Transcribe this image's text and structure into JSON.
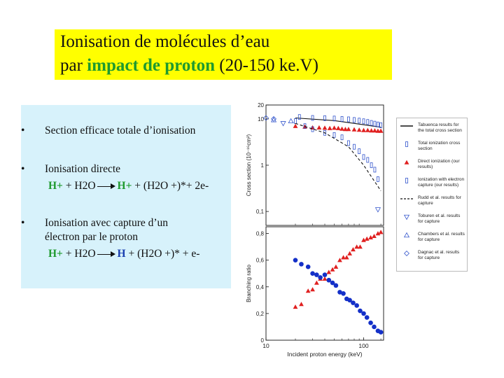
{
  "slide": {
    "title_line1": "Ionisation de molécules d’eau",
    "title_line2_pre": "par ",
    "title_line2_hl": "impact de proton",
    "title_line2_post": " (20-150 ke.V)"
  },
  "bullets": {
    "b1": "Section efficace totale d’ionisation",
    "b2": "Ionisation directe",
    "b3a": "Ionisation avec capture d’un",
    "b3b": "électron par le proton",
    "dot": "•"
  },
  "eq1": {
    "lhs_h": "H+",
    "lhs_rest": " + H2O",
    "rhs_h": "H+",
    "rhs_rest": " + (H2O +)*+ 2e-"
  },
  "eq2": {
    "lhs_h": "H+",
    "lhs_rest": " + H2O",
    "rhs_h": "H",
    "rhs_rest": " + (H2O +)* + e-"
  },
  "chart_data": [
    {
      "type": "scatter",
      "ylabel": "Cross section (10⁻¹⁶cm²)",
      "x_scale": "log",
      "y_scale": "log",
      "xlim": [
        10,
        160
      ],
      "ylim": [
        0.05,
        20
      ],
      "y_ticks": [
        "20",
        "10",
        "1",
        "0,1"
      ],
      "series": [
        {
          "name": "Tabuenca results for the total cross section",
          "style": "line",
          "x": [
            20,
            50,
            100,
            150
          ],
          "y": [
            10.5,
            9.2,
            7.5,
            6.6
          ]
        },
        {
          "name": "Total ionization cross section",
          "style": "open-bar",
          "x": [
            22,
            30,
            40,
            50,
            60,
            70,
            80,
            90,
            100,
            110,
            120,
            130,
            140,
            150
          ],
          "y": [
            11,
            10.5,
            10.4,
            10.2,
            10,
            9.8,
            9.5,
            9.2,
            8.9,
            8.6,
            8.2,
            7.9,
            7.6,
            7.3
          ]
        },
        {
          "name": "Direct ionization (our results)",
          "style": "filled-triangle",
          "x": [
            20,
            25,
            30,
            35,
            40,
            45,
            50,
            55,
            60,
            65,
            70,
            80,
            90,
            100,
            110,
            120,
            130,
            140,
            150
          ],
          "y": [
            7,
            6.8,
            6.5,
            6.5,
            6.4,
            6.3,
            6.4,
            6.3,
            6.1,
            6,
            6,
            5.9,
            5.8,
            5.7,
            5.7,
            5.6,
            5.6,
            5.5,
            5.5
          ]
        },
        {
          "name": "Ionization with electron capture (our results)",
          "style": "open-bar",
          "x": [
            20,
            25,
            30,
            40,
            50,
            60,
            70,
            80,
            90,
            100,
            110,
            120,
            130,
            140
          ],
          "y": [
            9,
            7,
            6,
            5,
            4.5,
            4,
            3,
            2.5,
            2,
            1.5,
            1.3,
            1,
            0.8,
            0.5
          ]
        },
        {
          "name": "Rudd et al. results for capture",
          "style": "dashed",
          "x": [
            20,
            40,
            70,
            100,
            150
          ],
          "y": [
            8,
            5,
            2.5,
            1,
            0.28
          ]
        },
        {
          "name": "Toburen et al. results for capture",
          "style": "open-triangle-down",
          "x": [
            15,
            140
          ],
          "y": [
            8,
            0.11
          ]
        },
        {
          "name": "Chambers et al. results for capture",
          "style": "open-triangle-up",
          "x": [
            12,
            18
          ],
          "y": [
            9.5,
            9
          ]
        },
        {
          "name": "Dagnac et al. results for capture",
          "style": "open-diamond",
          "x": [
            10,
            12
          ],
          "y": [
            10.5,
            10
          ]
        }
      ]
    },
    {
      "type": "scatter",
      "xlabel": "Incident proton energy (keV)",
      "ylabel": "Branching ratio",
      "x_scale": "log",
      "xlim": [
        10,
        160
      ],
      "ylim": [
        0,
        0.85
      ],
      "x_ticks": [
        "10",
        "100"
      ],
      "y_ticks": [
        "0",
        "0,2",
        "0,4",
        "0,6",
        "0,8"
      ],
      "series": [
        {
          "name": "Direct ionization",
          "style": "filled-triangle",
          "color": "#e02020",
          "x": [
            20,
            23,
            27,
            30,
            33,
            36,
            40,
            44,
            48,
            52,
            57,
            62,
            67,
            72,
            78,
            85,
            92,
            100,
            108,
            118,
            128,
            140,
            150
          ],
          "y": [
            0.25,
            0.27,
            0.37,
            0.38,
            0.43,
            0.46,
            0.46,
            0.51,
            0.53,
            0.55,
            0.6,
            0.62,
            0.62,
            0.65,
            0.68,
            0.7,
            0.7,
            0.75,
            0.76,
            0.77,
            0.78,
            0.8,
            0.81
          ]
        },
        {
          "name": "Ionization with electron capture",
          "style": "filled-circle",
          "color": "#1430c8",
          "x": [
            20,
            23,
            27,
            30,
            33,
            36,
            40,
            44,
            48,
            52,
            57,
            62,
            67,
            72,
            78,
            85,
            92,
            100,
            108,
            118,
            128,
            140,
            150
          ],
          "y": [
            0.6,
            0.57,
            0.55,
            0.5,
            0.49,
            0.47,
            0.49,
            0.45,
            0.43,
            0.41,
            0.36,
            0.35,
            0.31,
            0.3,
            0.28,
            0.26,
            0.22,
            0.2,
            0.17,
            0.13,
            0.1,
            0.07,
            0.06
          ]
        }
      ]
    }
  ],
  "legend": [
    {
      "symbol": "line",
      "text": "Tabuenca results for the total cross section"
    },
    {
      "symbol": "open-bar",
      "text": "Total ionization cross section"
    },
    {
      "symbol": "filled-triangle",
      "text": "Direct ionization (our results)"
    },
    {
      "symbol": "open-bar",
      "text": "Ionization with electron capture (our results)"
    },
    {
      "symbol": "dashed",
      "text": "Rudd et al. results for capture"
    },
    {
      "symbol": "open-triangle-down",
      "text": "Toburen et al. results for capture"
    },
    {
      "symbol": "open-triangle-up",
      "text": "Chambers et al. results for capture"
    },
    {
      "symbol": "open-diamond",
      "text": "Dagnac et al. results for capture"
    }
  ],
  "colors": {
    "title_bg": "#ffff00",
    "highlight": "#1f9a2e",
    "bullet_bg": "#d7f2fb",
    "red": "#e02020",
    "blue": "#1430c8",
    "open_marker": "#3355cc"
  }
}
